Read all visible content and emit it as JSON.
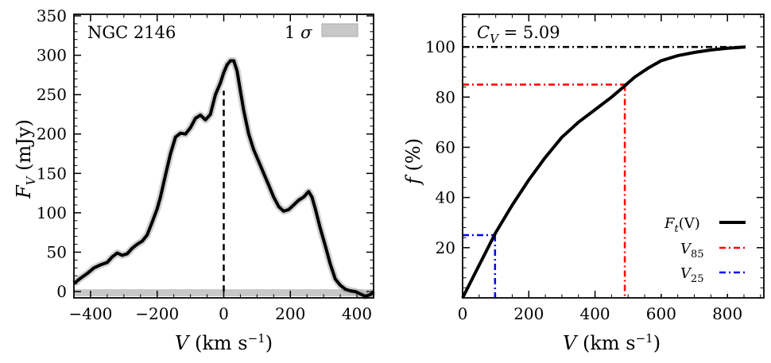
{
  "chart_data": [
    {
      "type": "line",
      "panel": "left",
      "title": "NGC 2146",
      "xlabel": "V (km s⁻¹)",
      "ylabel": "F_V (mJy)",
      "ylabel_main": "F",
      "ylabel_sub": "V",
      "ylabel_unit": "(mJy)",
      "xlabel_main": "V",
      "xlabel_unit": "(km s",
      "xlabel_exp": "−1",
      "xlim": [
        -450,
        450
      ],
      "ylim": [
        -8,
        352
      ],
      "xticks": [
        -400,
        -200,
        0,
        200,
        400
      ],
      "xtick_labels": [
        "−400",
        "−200",
        "0",
        "200",
        "400"
      ],
      "yticks": [
        0,
        50,
        100,
        150,
        200,
        250,
        300,
        350
      ],
      "ytick_labels": [
        "0",
        "50",
        "100",
        "150",
        "200",
        "250",
        "300",
        "350"
      ],
      "series": [
        {
          "name": "spectrum",
          "color": "#000000",
          "x": [
            -450,
            -430,
            -410,
            -390,
            -370,
            -350,
            -335,
            -320,
            -305,
            -290,
            -275,
            -260,
            -245,
            -230,
            -215,
            -200,
            -190,
            -175,
            -160,
            -145,
            -130,
            -115,
            -100,
            -85,
            -70,
            -55,
            -40,
            -25,
            -10,
            0,
            10,
            20,
            30,
            40,
            50,
            60,
            75,
            90,
            105,
            120,
            135,
            150,
            165,
            180,
            195,
            210,
            225,
            240,
            255,
            265,
            275,
            290,
            305,
            320,
            335,
            350,
            365,
            380,
            395,
            410,
            425,
            440,
            450
          ],
          "y": [
            10,
            17,
            23,
            30,
            34,
            37,
            44,
            49,
            46,
            48,
            55,
            60,
            64,
            72,
            88,
            105,
            120,
            148,
            175,
            196,
            201,
            200,
            208,
            220,
            224,
            218,
            225,
            250,
            265,
            278,
            288,
            293,
            293,
            280,
            255,
            230,
            200,
            180,
            165,
            150,
            135,
            120,
            108,
            102,
            104,
            110,
            116,
            120,
            127,
            120,
            105,
            80,
            58,
            35,
            16,
            8,
            3,
            1,
            0,
            -3,
            -6,
            -4,
            0
          ]
        }
      ],
      "noise_band": {
        "label": "1 σ",
        "label_main": "1",
        "label_sym": "σ",
        "ymin": -6,
        "ymax": 3,
        "color": "#c8c8c8"
      },
      "vline": {
        "x": 0,
        "ymin": 0,
        "ymax": 255,
        "style": "dashed",
        "color": "#000000"
      }
    },
    {
      "type": "line",
      "panel": "right",
      "annotation": "C_V = 5.09",
      "annotation_main": "C",
      "annotation_sub": "V",
      "annotation_value": " = 5.09",
      "xlabel": "V (km s⁻¹)",
      "ylabel": "f (%)",
      "ylabel_main": "f",
      "ylabel_unit": "(%)",
      "xlabel_main": "V",
      "xlabel_unit": "(km s",
      "xlabel_exp": "−1",
      "xlim": [
        0,
        910
      ],
      "ylim": [
        0,
        113
      ],
      "xticks": [
        0,
        200,
        400,
        600,
        800
      ],
      "xtick_labels": [
        "0",
        "200",
        "400",
        "600",
        "800"
      ],
      "yticks": [
        20,
        40,
        60,
        80,
        100
      ],
      "ytick_labels": [
        "20",
        "40",
        "60",
        "80",
        "100"
      ],
      "series": [
        {
          "name": "F_t(V)",
          "label_main": "F",
          "label_sub": "t",
          "label_rest": "(V)",
          "color": "#000000",
          "x": [
            0,
            50,
            100,
            150,
            200,
            250,
            300,
            350,
            400,
            450,
            490,
            520,
            560,
            600,
            650,
            700,
            750,
            800,
            855
          ],
          "y": [
            0,
            13,
            26,
            37,
            47,
            56,
            64,
            70,
            75,
            80,
            84.5,
            88,
            91.5,
            94.5,
            96.5,
            97.8,
            98.8,
            99.5,
            100
          ]
        }
      ],
      "reference_lines": [
        {
          "name": "total",
          "y": 100,
          "x_end": 855,
          "color": "#000000",
          "style": "dashdot"
        },
        {
          "name": "V_85",
          "label_main": "V",
          "label_sub": "85",
          "x": 490,
          "y": 85,
          "color": "#ff0000",
          "style": "dashdot"
        },
        {
          "name": "V_25",
          "label_main": "V",
          "label_sub": "25",
          "x": 98,
          "y": 25,
          "color": "#0000ff",
          "style": "dashdot"
        }
      ],
      "legend": "lower right"
    }
  ]
}
